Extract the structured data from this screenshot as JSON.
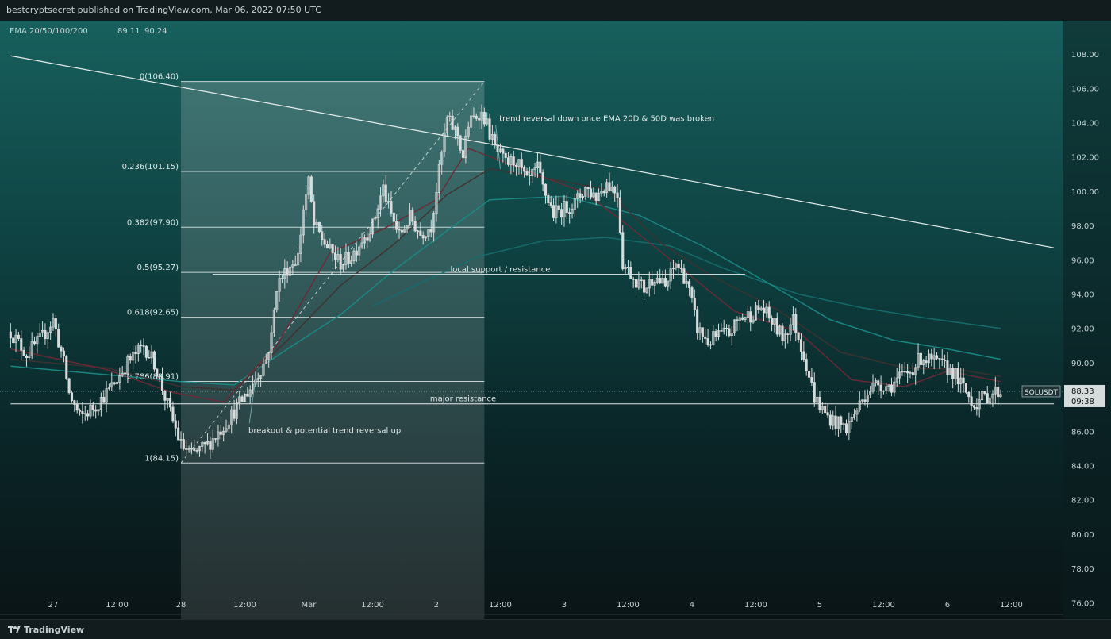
{
  "header": {
    "published_text": "bestcryptsecret published on TradingView.com, Mar 06, 2022 07:50 UTC"
  },
  "indicator_legend": {
    "name": "EMA 20/50/100/200",
    "values": [
      "89.11",
      "90.24"
    ]
  },
  "footer": {
    "brand": "TradingView"
  },
  "colors": {
    "candle": "#d8dcdc",
    "ema20": "#6b2a36",
    "ema50": "#40312f",
    "ema100": "#1a8a86",
    "ema200": "#156e6e",
    "fib_box": "#d0d4d4",
    "text": "#dfe6e6"
  },
  "chart_data": {
    "type": "candlestick",
    "symbol": "SOLUSDT",
    "last_price": "88.33",
    "countdown": "09:38",
    "ylim": [
      75,
      109
    ],
    "y_ticks": [
      "76.00",
      "78.00",
      "80.00",
      "82.00",
      "84.00",
      "86.00",
      "88.00",
      "90.00",
      "92.00",
      "94.00",
      "96.00",
      "98.00",
      "100.00",
      "102.00",
      "104.00",
      "106.00",
      "108.00"
    ],
    "x_ticks": [
      {
        "label": "27",
        "t": 0
      },
      {
        "label": "12:00",
        "t": 12
      },
      {
        "label": "28",
        "t": 24
      },
      {
        "label": "12:00",
        "t": 36
      },
      {
        "label": "Mar",
        "t": 48
      },
      {
        "label": "12:00",
        "t": 60
      },
      {
        "label": "2",
        "t": 72
      },
      {
        "label": "12:00",
        "t": 84
      },
      {
        "label": "3",
        "t": 96
      },
      {
        "label": "12:00",
        "t": 108
      },
      {
        "label": "4",
        "t": 120
      },
      {
        "label": "12:00",
        "t": 132
      },
      {
        "label": "5",
        "t": 144
      },
      {
        "label": "12:00",
        "t": 156
      },
      {
        "label": "6",
        "t": 168
      },
      {
        "label": "12:00",
        "t": 180
      }
    ],
    "x_range_hours": [
      -8,
      188
    ],
    "price_path": [
      [
        -8,
        91.8
      ],
      [
        -5,
        90.5
      ],
      [
        -2,
        91.5
      ],
      [
        0,
        92.5
      ],
      [
        2,
        90
      ],
      [
        3,
        88.2
      ],
      [
        5,
        86.8
      ],
      [
        8,
        87.5
      ],
      [
        11,
        88.6
      ],
      [
        14,
        90
      ],
      [
        17,
        91
      ],
      [
        19,
        90
      ],
      [
        21,
        88
      ],
      [
        24,
        85.2
      ],
      [
        26,
        84.6
      ],
      [
        29,
        85.2
      ],
      [
        32,
        86.3
      ],
      [
        35,
        87.6
      ],
      [
        37,
        88.5
      ],
      [
        40,
        90.2
      ],
      [
        41,
        91.5
      ],
      [
        42,
        94.5
      ],
      [
        44,
        95.5
      ],
      [
        46,
        96.2
      ],
      [
        47,
        99
      ],
      [
        48,
        100.5
      ],
      [
        49,
        98
      ],
      [
        52,
        96.5
      ],
      [
        54,
        95.8
      ],
      [
        56,
        96.2
      ],
      [
        58,
        97.2
      ],
      [
        60,
        98
      ],
      [
        62,
        100.2
      ],
      [
        63,
        99
      ],
      [
        65,
        97.4
      ],
      [
        67,
        98.5
      ],
      [
        69,
        97.5
      ],
      [
        71,
        98
      ],
      [
        73,
        102.2
      ],
      [
        74,
        104.2
      ],
      [
        76,
        103.3
      ],
      [
        77,
        102
      ],
      [
        78,
        103.9
      ],
      [
        80,
        104.6
      ],
      [
        81,
        104.3
      ],
      [
        83,
        102.5
      ],
      [
        85,
        101.6
      ],
      [
        87,
        101.8
      ],
      [
        89,
        100.5
      ],
      [
        91,
        101.3
      ],
      [
        92,
        100.2
      ],
      [
        94,
        98.7
      ],
      [
        96,
        99
      ],
      [
        98,
        99.3
      ],
      [
        100,
        100.2
      ],
      [
        102,
        99.7
      ],
      [
        104,
        100.5
      ],
      [
        106,
        99.9
      ],
      [
        107,
        95.8
      ],
      [
        109,
        95
      ],
      [
        111,
        94.3
      ],
      [
        113,
        95.1
      ],
      [
        115,
        94.4
      ],
      [
        117,
        95.8
      ],
      [
        119,
        94.8
      ],
      [
        121,
        92
      ],
      [
        123,
        91.2
      ],
      [
        125,
        91.6
      ],
      [
        127,
        91.7
      ],
      [
        129,
        92.6
      ],
      [
        131,
        92.8
      ],
      [
        133,
        93.2
      ],
      [
        135,
        92.4
      ],
      [
        137,
        91.5
      ],
      [
        139,
        92.5
      ],
      [
        141,
        90.5
      ],
      [
        143,
        88
      ],
      [
        145,
        87
      ],
      [
        147,
        86.5
      ],
      [
        149,
        86.2
      ],
      [
        151,
        87.3
      ],
      [
        153,
        88.4
      ],
      [
        155,
        88.8
      ],
      [
        157,
        88.6
      ],
      [
        159,
        89.1
      ],
      [
        161,
        89.5
      ],
      [
        163,
        90.3
      ],
      [
        165,
        90.1
      ],
      [
        167,
        89.8
      ],
      [
        169,
        89.5
      ],
      [
        171,
        88.5
      ],
      [
        173,
        87.6
      ],
      [
        175,
        88
      ],
      [
        177,
        88.3
      ],
      [
        178,
        88.3
      ]
    ],
    "ema20_path": [
      [
        -8,
        90.8
      ],
      [
        10,
        89.6
      ],
      [
        22,
        88.3
      ],
      [
        32,
        87.7
      ],
      [
        42,
        91
      ],
      [
        52,
        96.4
      ],
      [
        62,
        97.8
      ],
      [
        72,
        99.5
      ],
      [
        78,
        102.5
      ],
      [
        88,
        101.3
      ],
      [
        100,
        99.9
      ],
      [
        108,
        98
      ],
      [
        118,
        95.5
      ],
      [
        128,
        93
      ],
      [
        140,
        91.8
      ],
      [
        150,
        89
      ],
      [
        160,
        88.6
      ],
      [
        168,
        89.5
      ],
      [
        178,
        88.9
      ]
    ],
    "ema50_path": [
      [
        -8,
        90.2
      ],
      [
        10,
        89.7
      ],
      [
        24,
        88.6
      ],
      [
        34,
        88.4
      ],
      [
        44,
        91.3
      ],
      [
        54,
        94.5
      ],
      [
        64,
        96.9
      ],
      [
        74,
        99.8
      ],
      [
        82,
        101.3
      ],
      [
        92,
        100.8
      ],
      [
        104,
        100.1
      ],
      [
        114,
        97
      ],
      [
        124,
        95
      ],
      [
        136,
        93.1
      ],
      [
        148,
        90.6
      ],
      [
        160,
        89.7
      ],
      [
        170,
        89.6
      ],
      [
        178,
        89.2
      ]
    ],
    "ema100_path": [
      [
        -8,
        89.8
      ],
      [
        10,
        89.3
      ],
      [
        24,
        88.9
      ],
      [
        34,
        88.7
      ],
      [
        44,
        90.8
      ],
      [
        54,
        92.8
      ],
      [
        64,
        95.4
      ],
      [
        74,
        97.7
      ],
      [
        82,
        99.5
      ],
      [
        96,
        99.7
      ],
      [
        110,
        98.6
      ],
      [
        122,
        96.8
      ],
      [
        134,
        94.7
      ],
      [
        146,
        92.5
      ],
      [
        158,
        91.3
      ],
      [
        168,
        90.8
      ],
      [
        178,
        90.2
      ]
    ],
    "ema200_path": [
      [
        60,
        93.3
      ],
      [
        70,
        94.8
      ],
      [
        80,
        96.2
      ],
      [
        92,
        97.1
      ],
      [
        104,
        97.3
      ],
      [
        116,
        96.8
      ],
      [
        126,
        95.5
      ],
      [
        140,
        94
      ],
      [
        152,
        93.2
      ],
      [
        164,
        92.6
      ],
      [
        178,
        92
      ]
    ],
    "trendline": {
      "from": [
        -8,
        107.9
      ],
      "to": [
        188,
        96.7
      ]
    },
    "fibonacci": {
      "t_start": 24,
      "t_end": 81,
      "levels": [
        {
          "label": "0(106.40)",
          "price": 106.4
        },
        {
          "label": "0.236(101.15)",
          "price": 101.15
        },
        {
          "label": "0.382(97.90)",
          "price": 97.9
        },
        {
          "label": "0.5(95.27)",
          "price": 95.27
        },
        {
          "label": "0.618(92.65)",
          "price": 92.65
        },
        {
          "label": "0.786(88.91)",
          "price": 88.91
        },
        {
          "label": "1(84.15)",
          "price": 84.15
        }
      ],
      "swing": {
        "from": [
          24,
          84.15
        ],
        "to": [
          81,
          106.4
        ]
      }
    },
    "horizontal_lines": [
      {
        "label": "local support / resistance",
        "price": 95.15,
        "t_start": 30,
        "t_end": 130,
        "label_t": 84
      },
      {
        "label": "major resistance",
        "price": 87.6,
        "t_start": -8,
        "t_end": 188,
        "label_t": 77
      }
    ],
    "annotations": [
      {
        "text": "trend reversal down once EMA 20D & 50D was broken",
        "t": 104,
        "price": 104.1,
        "pointer_to": [
          84,
          101.3
        ]
      },
      {
        "text": "breakout & potential trend reversal up",
        "t": 51,
        "price": 85.9,
        "pointer_to": [
          38,
          89
        ]
      }
    ]
  }
}
